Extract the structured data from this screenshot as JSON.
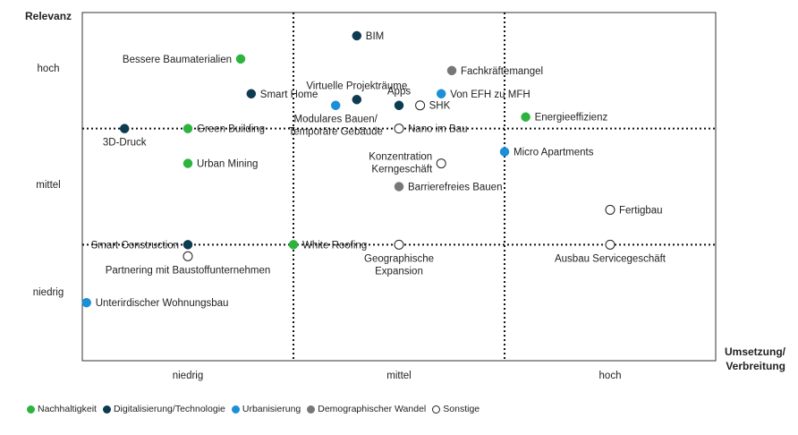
{
  "chart_data": {
    "type": "scatter",
    "title": "",
    "ylabel": "Relevanz",
    "xlabel": "Umsetzung/ Verbreitung",
    "xlabel_lines": [
      "Umsetzung/",
      "Verbreitung"
    ],
    "x_categories": [
      "niedrig",
      "mittel",
      "hoch"
    ],
    "y_categories": [
      "hoch",
      "mittel",
      "niedrig"
    ],
    "xlim": [
      0,
      3
    ],
    "ylim": [
      0,
      3
    ],
    "divider_positions": {
      "x": [
        1,
        2
      ],
      "y": [
        1,
        2
      ]
    },
    "series": [
      {
        "name": "Nachhaltigkeit",
        "key": "nachhaltigkeit"
      },
      {
        "name": "Digitalisierung/Technologie",
        "key": "digital"
      },
      {
        "name": "Urbanisierung",
        "key": "urban"
      },
      {
        "name": "Demographischer Wandel",
        "key": "demo"
      },
      {
        "name": "Sonstige",
        "key": "sonstige"
      }
    ],
    "colors": {
      "nachhaltigkeit": "#2db43f",
      "digital": "#0d3b4f",
      "urban": "#1b8fd8",
      "demo": "#777777",
      "sonstige": "#ffffff"
    },
    "points": [
      {
        "label": "BIM",
        "series": "digital",
        "x": 1.3,
        "y": 2.8,
        "anchor": "right"
      },
      {
        "label": "Bessere Baumaterialien",
        "series": "nachhaltigkeit",
        "x": 0.75,
        "y": 2.6,
        "anchor": "left"
      },
      {
        "label": "Fachkräftemangel",
        "series": "demo",
        "x": 1.75,
        "y": 2.5,
        "anchor": "right"
      },
      {
        "label": "Virtuelle Projekträume",
        "series": "digital",
        "x": 1.3,
        "y": 2.25,
        "anchor": "top"
      },
      {
        "label": "Smart Home",
        "series": "digital",
        "x": 0.8,
        "y": 2.3,
        "anchor": "right"
      },
      {
        "label": "Modulares Bauen/ Temporäre Gebäude",
        "series": "urban",
        "x": 1.2,
        "y": 2.2,
        "anchor": "bottom"
      },
      {
        "label": "Apps",
        "series": "digital",
        "x": 1.5,
        "y": 2.2,
        "anchor": "top"
      },
      {
        "label": "Von EFH zu MFH",
        "series": "urban",
        "x": 1.7,
        "y": 2.3,
        "anchor": "right"
      },
      {
        "label": "SHK",
        "series": "sonstige",
        "x": 1.6,
        "y": 2.2,
        "anchor": "right"
      },
      {
        "label": "Energieeffizienz",
        "series": "nachhaltigkeit",
        "x": 2.1,
        "y": 2.1,
        "anchor": "right"
      },
      {
        "label": "3D-Druck",
        "series": "digital",
        "x": 0.2,
        "y": 2.0,
        "anchor": "bottom"
      },
      {
        "label": "Green Building",
        "series": "nachhaltigkeit",
        "x": 0.5,
        "y": 2.0,
        "anchor": "right"
      },
      {
        "label": "Nano im Bau",
        "series": "sonstige",
        "x": 1.5,
        "y": 2.0,
        "anchor": "right"
      },
      {
        "label": "Urban Mining",
        "series": "nachhaltigkeit",
        "x": 0.5,
        "y": 1.7,
        "anchor": "right"
      },
      {
        "label": "Micro Apartments",
        "series": "urban",
        "x": 2.0,
        "y": 1.8,
        "anchor": "right"
      },
      {
        "label": "Konzentration Kerngeschäft",
        "series": "sonstige",
        "x": 1.7,
        "y": 1.7,
        "anchor": "left"
      },
      {
        "label": "Barrierefreies Bauen",
        "series": "demo",
        "x": 1.5,
        "y": 1.5,
        "anchor": "right"
      },
      {
        "label": "Fertigbau",
        "series": "sonstige",
        "x": 2.5,
        "y": 1.3,
        "anchor": "right"
      },
      {
        "label": "Smart Construction",
        "series": "digital",
        "x": 0.5,
        "y": 1.0,
        "anchor": "left"
      },
      {
        "label": "White Roofing",
        "series": "nachhaltigkeit",
        "x": 1.0,
        "y": 1.0,
        "anchor": "right"
      },
      {
        "label": "Geographische Expansion",
        "series": "sonstige",
        "x": 1.5,
        "y": 1.0,
        "anchor": "bottom"
      },
      {
        "label": "Ausbau Servicegeschäft",
        "series": "sonstige",
        "x": 2.5,
        "y": 1.0,
        "anchor": "bottom"
      },
      {
        "label": "Partnering mit Baustoffunternehmen",
        "series": "sonstige",
        "x": 0.5,
        "y": 0.9,
        "anchor": "bottom"
      },
      {
        "label": "Unterirdischer Wohnungsbau",
        "series": "urban",
        "x": 0.02,
        "y": 0.5,
        "anchor": "right"
      }
    ]
  }
}
